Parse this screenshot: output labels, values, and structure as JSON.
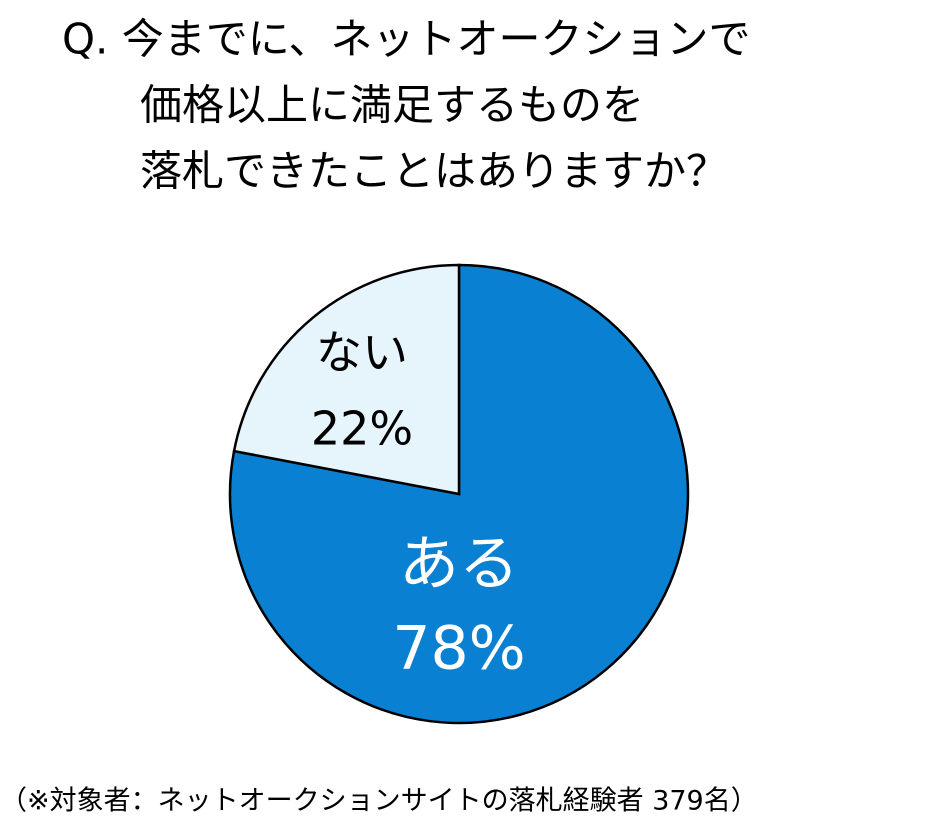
{
  "chart_data": {
    "type": "pie",
    "title": [
      "Q. 今までに、ネットオークションで",
      "価格以上に満足するものを",
      "落札できたことはありますか？"
    ],
    "categories": [
      "ある",
      "ない"
    ],
    "values": [
      78,
      22
    ],
    "value_labels": [
      "78%",
      "22%"
    ],
    "colors": [
      "#0a80d2",
      "#e6f4fc"
    ],
    "label_colors": [
      "#ffffff",
      "#000000"
    ],
    "note": "（※対象者：ネットオークションサイトの落札経験者 379名）"
  }
}
